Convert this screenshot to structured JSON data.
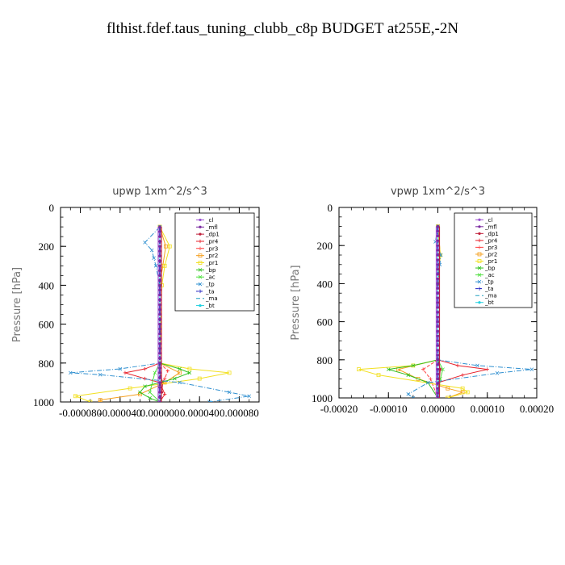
{
  "title": "flthist.fdef.taus_tuning_clubb_c8p  BUDGET at255E,-2N",
  "legend_entries": [
    {
      "name": "_cl",
      "color": "#9a4fd0",
      "dash": "",
      "marker": "dot"
    },
    {
      "name": "_mfl",
      "color": "#7a2aa0",
      "dash": "",
      "marker": "dot"
    },
    {
      "name": "_dp1",
      "color": "#c0203c",
      "dash": "",
      "marker": "dot"
    },
    {
      "name": "_pr4",
      "color": "#e8202a",
      "dash": "",
      "marker": "plus"
    },
    {
      "name": "_pr3",
      "color": "#ff4040",
      "dash": "4,2",
      "marker": "plus"
    },
    {
      "name": "_pr2",
      "color": "#f5a020",
      "dash": "",
      "marker": "square"
    },
    {
      "name": "_pr1",
      "color": "#f2e020",
      "dash": "",
      "marker": "square"
    },
    {
      "name": "_bp",
      "color": "#30c020",
      "dash": "",
      "marker": "x"
    },
    {
      "name": "_ac",
      "color": "#50e040",
      "dash": "",
      "marker": "x"
    },
    {
      "name": "_tp",
      "color": "#3090d0",
      "dash": "6,2,1,2",
      "marker": "x"
    },
    {
      "name": "_ta",
      "color": "#2020c0",
      "dash": "3,2",
      "marker": "plus"
    },
    {
      "name": "_ma",
      "color": "#20a0c0",
      "dash": "5,3",
      "marker": "none"
    },
    {
      "name": "_bt",
      "color": "#20d0e0",
      "dash": "",
      "marker": "dot"
    }
  ],
  "chart_data": [
    {
      "type": "line",
      "title": "upwp   1xm^2/s^3",
      "ylabel": "Pressure [hPa]",
      "xlim": [
        -0.0001,
        0.0001
      ],
      "ylim": [
        1000,
        0
      ],
      "x_ticks": [
        -8e-05,
        -4e-05,
        0.0,
        4e-05,
        8e-05
      ],
      "x_tick_labels": [
        "-0.000080",
        "-0.000040",
        "0.000000",
        "0.000040",
        "0.000080"
      ],
      "y_ticks": [
        0,
        200,
        400,
        600,
        800,
        1000
      ],
      "y_tick_labels": [
        "0",
        "200",
        "400",
        "600",
        "800",
        "1000"
      ],
      "grid": false,
      "legend_position": "top-right",
      "series": [
        {
          "name": "_cl",
          "points": [
            [
              0,
              100
            ],
            [
              0,
              400
            ],
            [
              0,
              800
            ],
            [
              0,
              1000
            ]
          ]
        },
        {
          "name": "_mfl",
          "points": [
            [
              0,
              100
            ],
            [
              0,
              400
            ],
            [
              0,
              800
            ],
            [
              0,
              1000
            ]
          ]
        },
        {
          "name": "_dp1",
          "points": [
            [
              0,
              800
            ],
            [
              0,
              850
            ],
            [
              3e-06,
              900
            ],
            [
              2e-06,
              950
            ],
            [
              0,
              1000
            ]
          ]
        },
        {
          "name": "_pr4",
          "points": [
            [
              0,
              800
            ],
            [
              -1.5e-05,
              830
            ],
            [
              -3.5e-05,
              850
            ],
            [
              -1.5e-05,
              880
            ],
            [
              0,
              900
            ],
            [
              5e-06,
              960
            ],
            [
              0,
              1000
            ]
          ]
        },
        {
          "name": "_pr3",
          "points": [
            [
              0,
              800
            ],
            [
              8e-06,
              840
            ],
            [
              5e-06,
              880
            ],
            [
              0,
              920
            ],
            [
              0,
              1000
            ]
          ]
        },
        {
          "name": "_pr2",
          "points": [
            [
              0,
              100
            ],
            [
              6e-06,
              200
            ],
            [
              3e-06,
              300
            ],
            [
              0,
              400
            ],
            [
              0,
              800
            ],
            [
              2e-05,
              850
            ],
            [
              5e-06,
              900
            ],
            [
              -2e-05,
              960
            ],
            [
              -6e-05,
              990
            ],
            [
              -6e-05,
              1000
            ]
          ]
        },
        {
          "name": "_pr1",
          "points": [
            [
              0,
              100
            ],
            [
              1e-05,
              200
            ],
            [
              5e-06,
              300
            ],
            [
              2e-06,
              400
            ],
            [
              0,
              800
            ],
            [
              3e-05,
              830
            ],
            [
              7e-05,
              850
            ],
            [
              4e-05,
              880
            ],
            [
              -3e-05,
              930
            ],
            [
              -8.5e-05,
              970
            ],
            [
              -7e-05,
              1000
            ]
          ]
        },
        {
          "name": "_bp",
          "points": [
            [
              0,
              800
            ],
            [
              2e-05,
              830
            ],
            [
              3e-05,
              850
            ],
            [
              1.5e-05,
              880
            ],
            [
              -1.5e-05,
              920
            ],
            [
              -2e-05,
              950
            ],
            [
              -1e-05,
              980
            ],
            [
              0,
              1000
            ]
          ]
        },
        {
          "name": "_ac",
          "points": [
            [
              0,
              800
            ],
            [
              -5e-06,
              850
            ],
            [
              -1e-05,
              950
            ],
            [
              0,
              1000
            ]
          ]
        },
        {
          "name": "_tp",
          "points": [
            [
              0,
              100
            ],
            [
              -1.5e-05,
              180
            ],
            [
              -8e-06,
              220
            ],
            [
              -6e-06,
              260
            ],
            [
              -4e-06,
              300
            ],
            [
              0,
              400
            ],
            [
              0,
              800
            ],
            [
              -4e-05,
              830
            ],
            [
              -9e-05,
              850
            ],
            [
              -6e-05,
              860
            ],
            [
              2e-05,
              900
            ],
            [
              7e-05,
              950
            ],
            [
              9e-05,
              970
            ],
            [
              5e-05,
              1000
            ]
          ]
        },
        {
          "name": "_ta",
          "points": [
            [
              0,
              100
            ],
            [
              0,
              400
            ],
            [
              0,
              800
            ],
            [
              0,
              1000
            ]
          ]
        },
        {
          "name": "_ma",
          "points": [
            [
              0,
              100
            ],
            [
              0,
              400
            ],
            [
              0,
              800
            ],
            [
              0,
              1000
            ]
          ]
        },
        {
          "name": "_bt",
          "points": [
            [
              0,
              100
            ],
            [
              0,
              400
            ],
            [
              0,
              800
            ],
            [
              0,
              1000
            ]
          ]
        }
      ]
    },
    {
      "type": "line",
      "title": "vpwp   1xm^2/s^3",
      "ylabel": "Pressure [hPa]",
      "xlim": [
        -0.0002,
        0.0002
      ],
      "ylim": [
        1000,
        0
      ],
      "x_ticks": [
        -0.0002,
        -0.0001,
        0.0,
        0.0001,
        0.0002
      ],
      "x_tick_labels": [
        "-0.00020",
        "-0.00010",
        "0.00000",
        "0.00010",
        "0.00020"
      ],
      "y_ticks": [
        0,
        200,
        400,
        600,
        800,
        1000
      ],
      "y_tick_labels": [
        "0",
        "200",
        "400",
        "600",
        "800",
        "1000"
      ],
      "grid": false,
      "legend_position": "top-right",
      "series": [
        {
          "name": "_cl",
          "points": [
            [
              0,
              100
            ],
            [
              0,
              400
            ],
            [
              0,
              800
            ],
            [
              0,
              1000
            ]
          ]
        },
        {
          "name": "_mfl",
          "points": [
            [
              0,
              100
            ],
            [
              0,
              400
            ],
            [
              0,
              800
            ],
            [
              0,
              1000
            ]
          ]
        },
        {
          "name": "_dp1",
          "points": [
            [
              0,
              800
            ],
            [
              5e-06,
              850
            ],
            [
              3e-06,
              900
            ],
            [
              0,
              1000
            ]
          ]
        },
        {
          "name": "_pr4",
          "points": [
            [
              0,
              800
            ],
            [
              4e-05,
              830
            ],
            [
              0.0001,
              850
            ],
            [
              5e-05,
              880
            ],
            [
              0,
              920
            ],
            [
              0,
              1000
            ]
          ]
        },
        {
          "name": "_pr3",
          "points": [
            [
              0,
              800
            ],
            [
              -3e-05,
              850
            ],
            [
              -1.5e-05,
              900
            ],
            [
              0,
              1000
            ]
          ]
        },
        {
          "name": "_pr2",
          "points": [
            [
              0,
              100
            ],
            [
              5e-06,
              250
            ],
            [
              0,
              400
            ],
            [
              0,
              800
            ],
            [
              -8e-05,
              850
            ],
            [
              -4e-05,
              900
            ],
            [
              2e-05,
              950
            ],
            [
              5e-05,
              970
            ],
            [
              2e-05,
              1000
            ]
          ]
        },
        {
          "name": "_pr1",
          "points": [
            [
              0,
              100
            ],
            [
              5e-06,
              250
            ],
            [
              0,
              400
            ],
            [
              0,
              800
            ],
            [
              -5e-05,
              830
            ],
            [
              -0.00016,
              850
            ],
            [
              -0.00012,
              880
            ],
            [
              5e-05,
              950
            ],
            [
              6e-05,
              970
            ],
            [
              2e-05,
              1000
            ]
          ]
        },
        {
          "name": "_bp",
          "points": [
            [
              0,
              800
            ],
            [
              -5e-05,
              830
            ],
            [
              -0.0001,
              850
            ],
            [
              -6e-05,
              880
            ],
            [
              -2e-05,
              920
            ],
            [
              0,
              1000
            ]
          ]
        },
        {
          "name": "_ac",
          "points": [
            [
              0,
              800
            ],
            [
              1e-05,
              850
            ],
            [
              5e-06,
              900
            ],
            [
              0,
              1000
            ]
          ]
        },
        {
          "name": "_tp",
          "points": [
            [
              0,
              100
            ],
            [
              -5e-06,
              180
            ],
            [
              6e-06,
              250
            ],
            [
              4e-06,
              300
            ],
            [
              0,
              400
            ],
            [
              0,
              800
            ],
            [
              8e-05,
              830
            ],
            [
              0.00019,
              850
            ],
            [
              0.00012,
              870
            ],
            [
              -2e-05,
              920
            ],
            [
              -6e-05,
              980
            ],
            [
              -5e-05,
              1000
            ]
          ]
        },
        {
          "name": "_ta",
          "points": [
            [
              0,
              100
            ],
            [
              0,
              400
            ],
            [
              0,
              800
            ],
            [
              0,
              1000
            ]
          ]
        },
        {
          "name": "_ma",
          "points": [
            [
              0,
              100
            ],
            [
              0,
              400
            ],
            [
              0,
              800
            ],
            [
              0,
              1000
            ]
          ]
        },
        {
          "name": "_bt",
          "points": [
            [
              0,
              100
            ],
            [
              0,
              400
            ],
            [
              0,
              800
            ],
            [
              0,
              1000
            ]
          ]
        }
      ]
    }
  ]
}
